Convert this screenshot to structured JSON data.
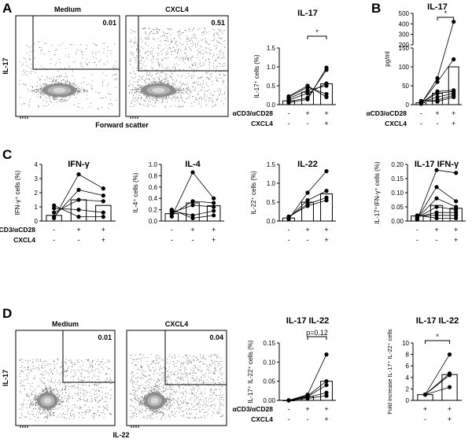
{
  "panel_letters": [
    "A",
    "B",
    "C",
    "D"
  ],
  "cond_labels": {
    "stim": "αCD3/αCD28",
    "cxcl4": "CXCL4"
  },
  "flow_axes": {
    "A": {
      "y": "IL-17",
      "x": "Forward scatter"
    },
    "D": {
      "y": "IL-17",
      "x": "IL-22"
    }
  },
  "flow_plots": {
    "A": [
      {
        "title": "Medium",
        "gate": "0.01"
      },
      {
        "title": "CXCL4",
        "gate": "0.51"
      }
    ],
    "D": [
      {
        "title": "Medium",
        "gate": "0.01"
      },
      {
        "title": "CXCL4",
        "gate": "0.04"
      }
    ]
  },
  "chart_data": [
    {
      "id": "A-IL17",
      "type": "bar",
      "title": "IL-17",
      "ylabel": "IL-17⁺ cells (%)",
      "ylim": [
        0,
        1.5
      ],
      "yticks": [
        "0.0",
        "0.5",
        "1.0",
        "1.5"
      ],
      "categories": [
        "ctrl",
        "stim",
        "stim+CXCL4"
      ],
      "row_stim": [
        "-",
        "+",
        "+"
      ],
      "row_cxcl4": [
        "-",
        "-",
        "+"
      ],
      "values": [
        0.1,
        0.33,
        0.55
      ],
      "points": [
        [
          0.05,
          0.08,
          0.12,
          0.16,
          0.2,
          0.22
        ],
        [
          0.14,
          0.18,
          0.3,
          0.38,
          0.46,
          0.5
        ],
        [
          0.98,
          0.92,
          0.56,
          0.5,
          0.28,
          0.2
        ]
      ],
      "paired": true,
      "significance": [
        {
          "from": 1,
          "to": 2,
          "label": "*"
        }
      ]
    },
    {
      "id": "B-IL17",
      "type": "bar",
      "title": "IL-17",
      "ylabel": "pg/ml",
      "broken_axis": true,
      "ylim_lower": [
        0,
        150
      ],
      "yticks_lower": [
        "0",
        "50",
        "100",
        "150"
      ],
      "ylim_upper": [
        200,
        500
      ],
      "yticks_upper": [
        "200",
        "300",
        "400",
        "500"
      ],
      "categories": [
        "ctrl",
        "stim",
        "stim+CXCL4"
      ],
      "row_stim": [
        "-",
        "+",
        "+"
      ],
      "row_cxcl4": [
        "-",
        "-",
        "+"
      ],
      "values": [
        5,
        30,
        100
      ],
      "points": [
        [
          2,
          3,
          4,
          5,
          6,
          8,
          10
        ],
        [
          70,
          60,
          35,
          30,
          20,
          12,
          8
        ],
        [
          420,
          120,
          38,
          35,
          30,
          25,
          20
        ]
      ],
      "paired": true,
      "significance": [
        {
          "from": 1,
          "to": 2,
          "label": "*"
        }
      ]
    },
    {
      "id": "C-IFNg",
      "type": "bar",
      "title": "IFN-γ",
      "ylabel": "IFN-γ⁺ cells (%)",
      "ylim": [
        0,
        4
      ],
      "yticks": [
        "0",
        "1",
        "2",
        "3",
        "4"
      ],
      "categories": [
        "ctrl",
        "stim",
        "stim+CXCL4"
      ],
      "row_stim": [
        "-",
        "+",
        "+"
      ],
      "row_cxcl4": [
        "-",
        "-",
        "+"
      ],
      "values": [
        0.4,
        1.5,
        1.1
      ],
      "points": [
        [
          0.2,
          0.3,
          0.6,
          0.9,
          1.1
        ],
        [
          3.3,
          2.2,
          1.5,
          0.8,
          0.3
        ],
        [
          2.3,
          1.8,
          1.4,
          0.6,
          0.3
        ]
      ],
      "paired": true,
      "significance": []
    },
    {
      "id": "C-IL4",
      "type": "bar",
      "title": "IL-4",
      "ylabel": "IL-4⁺ cells (%)",
      "ylim": [
        0,
        1.0
      ],
      "yticks": [
        "0.0",
        "0.2",
        "0.4",
        "0.6",
        "0.8",
        "1.0"
      ],
      "categories": [
        "ctrl",
        "stim",
        "stim+CXCL4"
      ],
      "row_stim": [
        "-",
        "+",
        "+"
      ],
      "row_cxcl4": [
        "-",
        "-",
        "+"
      ],
      "values": [
        0.13,
        0.32,
        0.27
      ],
      "points": [
        [
          0.08,
          0.12,
          0.15,
          0.18,
          0.2
        ],
        [
          0.86,
          0.35,
          0.28,
          0.1,
          0.05
        ],
        [
          0.4,
          0.32,
          0.25,
          0.18,
          0.1
        ]
      ],
      "paired": true,
      "significance": []
    },
    {
      "id": "C-IL22",
      "type": "bar",
      "title": "IL-22",
      "ylabel": "IL-22⁺ cells (%)",
      "ylim": [
        0,
        1.5
      ],
      "yticks": [
        "0.0",
        "0.5",
        "1.0",
        "1.5"
      ],
      "categories": [
        "ctrl",
        "stim",
        "stim+CXCL4"
      ],
      "row_stim": [
        "-",
        "+",
        "+"
      ],
      "row_cxcl4": [
        "-",
        "-",
        "+"
      ],
      "values": [
        0.08,
        0.5,
        0.72
      ],
      "points": [
        [
          0.05,
          0.08,
          0.1,
          0.12
        ],
        [
          0.75,
          0.55,
          0.45,
          0.4
        ],
        [
          1.32,
          0.8,
          0.62,
          0.55
        ]
      ],
      "paired": true,
      "significance": []
    },
    {
      "id": "C-IL17IFNg",
      "type": "bar",
      "title": "IL-17 IFN-γ",
      "ylabel": "IL-17⁺IFN-γ⁺ cells (%)",
      "ylim": [
        0,
        0.2
      ],
      "yticks": [
        "0.00",
        "0.05",
        "0.10",
        "0.15",
        "0.20"
      ],
      "categories": [
        "ctrl",
        "stim",
        "stim+CXCL4"
      ],
      "row_stim": [
        "-",
        "+",
        "+"
      ],
      "row_cxcl4": [
        "-",
        "-",
        "+"
      ],
      "values": [
        0.018,
        0.055,
        0.045
      ],
      "points": [
        [
          0.005,
          0.008,
          0.01,
          0.012,
          0.015,
          0.018,
          0.02
        ],
        [
          0.18,
          0.12,
          0.08,
          0.05,
          0.03,
          0.02,
          0.01
        ],
        [
          0.17,
          0.07,
          0.05,
          0.04,
          0.03,
          0.02,
          0.01
        ]
      ],
      "paired": true,
      "significance": []
    },
    {
      "id": "D-IL17IL22",
      "type": "bar",
      "title": "IL-17 IL-22",
      "ylabel": "IL-17⁺ IL-22⁺ cells (%)",
      "ylim": [
        0,
        0.15
      ],
      "yticks": [
        "0.00",
        "0.05",
        "0.10",
        "0.15"
      ],
      "categories": [
        "ctrl",
        "stim",
        "stim+CXCL4"
      ],
      "row_stim": [
        "-",
        "+",
        "+"
      ],
      "row_cxcl4": [
        "-",
        "-",
        "+"
      ],
      "values": [
        0.0,
        0.01,
        0.05
      ],
      "points": [
        [
          0.0,
          0.0,
          0.0,
          0.0,
          0.0
        ],
        [
          0.015,
          0.012,
          0.01,
          0.008,
          0.005
        ],
        [
          0.12,
          0.05,
          0.04,
          0.02,
          0.012
        ]
      ],
      "paired": true,
      "significance": [
        {
          "from": 1,
          "to": 2,
          "label": "p=0.12"
        }
      ]
    },
    {
      "id": "D-fold",
      "type": "bar",
      "title": "IL-17 IL-22",
      "ylabel": "Fold increase IL-17⁺ IL-22⁺ cells",
      "ylim": [
        0,
        10
      ],
      "yticks": [
        "0",
        "2",
        "4",
        "6",
        "8",
        "10"
      ],
      "categories": [
        "stim",
        "stim+CXCL4"
      ],
      "row_stim": [
        "+",
        "+"
      ],
      "row_cxcl4": [
        "-",
        "+"
      ],
      "values": [
        1.0,
        4.5
      ],
      "points": [
        [
          1.0,
          1.0,
          1.0,
          1.0
        ],
        [
          8.0,
          4.7,
          4.4,
          2.3
        ]
      ],
      "paired": true,
      "significance": [
        {
          "from": 0,
          "to": 1,
          "label": "*"
        }
      ]
    }
  ]
}
